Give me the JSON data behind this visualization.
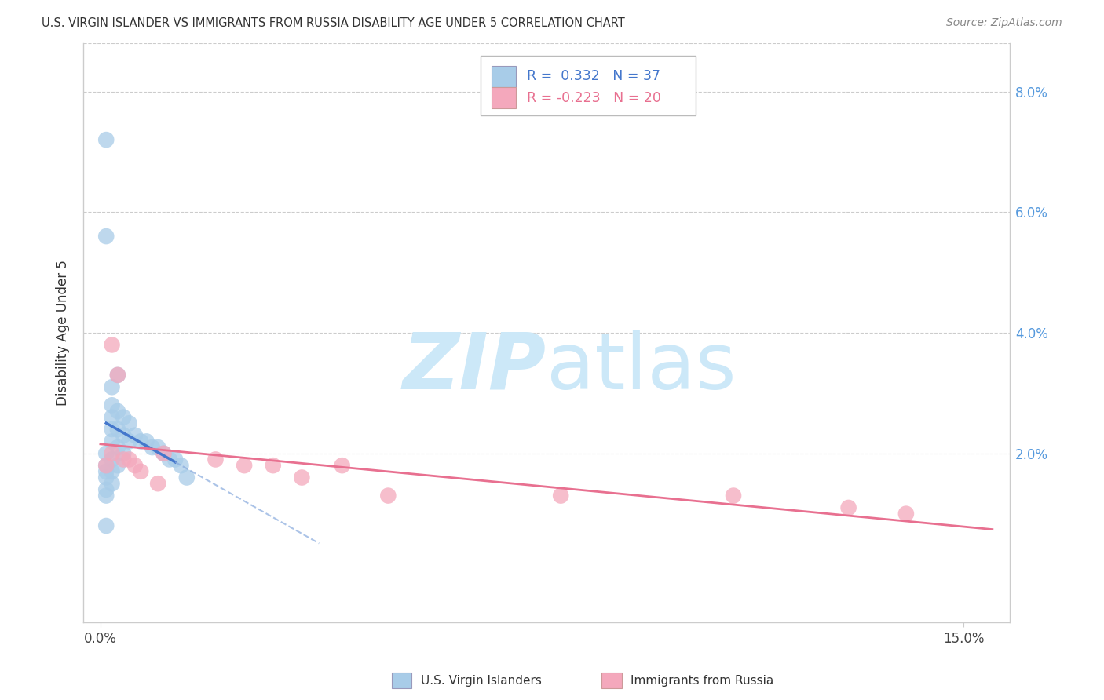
{
  "title": "U.S. VIRGIN ISLANDER VS IMMIGRANTS FROM RUSSIA DISABILITY AGE UNDER 5 CORRELATION CHART",
  "source": "Source: ZipAtlas.com",
  "ylabel": "Disability Age Under 5",
  "blue_R": 0.332,
  "blue_N": 37,
  "pink_R": -0.223,
  "pink_N": 20,
  "blue_color": "#a8cce8",
  "pink_color": "#f4a8bc",
  "blue_line_color": "#4477cc",
  "pink_line_color": "#e87090",
  "dashed_line_color": "#88aadd",
  "watermark_color": "#cce8f8",
  "xlim": [
    -0.003,
    0.158
  ],
  "ylim": [
    -0.008,
    0.088
  ],
  "xticks": [
    0.0,
    0.15
  ],
  "xtick_labels": [
    "0.0%",
    "15.0%"
  ],
  "yticks_right": [
    0.0,
    0.02,
    0.04,
    0.06,
    0.08
  ],
  "ytick_right_labels": [
    "",
    "2.0%",
    "4.0%",
    "6.0%",
    "8.0%"
  ],
  "blue_x": [
    0.001,
    0.001,
    0.001,
    0.001,
    0.001,
    0.001,
    0.001,
    0.001,
    0.001,
    0.002,
    0.002,
    0.002,
    0.002,
    0.002,
    0.002,
    0.002,
    0.002,
    0.003,
    0.003,
    0.003,
    0.003,
    0.003,
    0.004,
    0.004,
    0.004,
    0.005,
    0.005,
    0.006,
    0.007,
    0.008,
    0.009,
    0.01,
    0.011,
    0.012,
    0.013,
    0.014,
    0.015
  ],
  "blue_y": [
    0.072,
    0.056,
    0.02,
    0.018,
    0.017,
    0.016,
    0.014,
    0.013,
    0.008,
    0.031,
    0.028,
    0.026,
    0.024,
    0.022,
    0.019,
    0.017,
    0.015,
    0.033,
    0.027,
    0.024,
    0.021,
    0.018,
    0.026,
    0.023,
    0.02,
    0.025,
    0.022,
    0.023,
    0.022,
    0.022,
    0.021,
    0.021,
    0.02,
    0.019,
    0.019,
    0.018,
    0.016
  ],
  "pink_x": [
    0.001,
    0.002,
    0.002,
    0.003,
    0.004,
    0.005,
    0.006,
    0.007,
    0.01,
    0.011,
    0.02,
    0.025,
    0.03,
    0.035,
    0.042,
    0.05,
    0.08,
    0.11,
    0.13,
    0.14
  ],
  "pink_y": [
    0.018,
    0.02,
    0.038,
    0.033,
    0.019,
    0.019,
    0.018,
    0.017,
    0.015,
    0.02,
    0.019,
    0.018,
    0.018,
    0.016,
    0.018,
    0.013,
    0.013,
    0.013,
    0.011,
    0.01
  ],
  "blue_line_x0": 0.001,
  "blue_line_x_solid_end": 0.014,
  "blue_line_x_dashed_end": 0.038,
  "pink_line_x0": 0.0,
  "pink_line_x1": 0.155,
  "blue_intercept": 0.0165,
  "blue_slope": 0.85,
  "pink_intercept": 0.019,
  "pink_slope": -0.065
}
